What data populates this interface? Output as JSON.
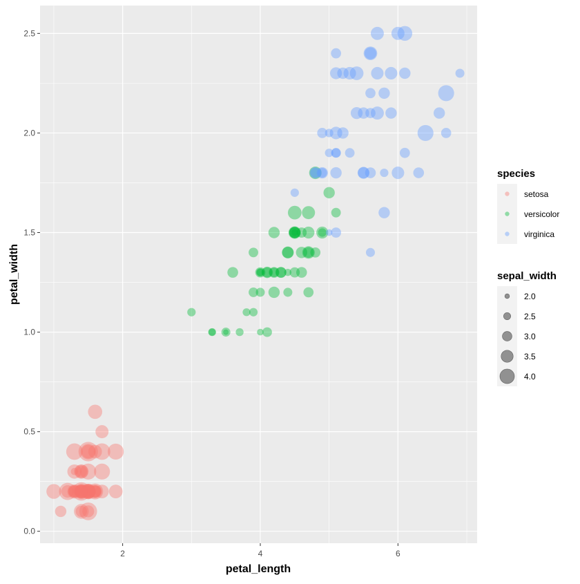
{
  "chart_data": {
    "type": "scatter",
    "xlabel": "petal_length",
    "ylabel": "petal_width",
    "xlim": [
      0.8,
      7.15
    ],
    "ylim": [
      -0.06,
      2.64
    ],
    "x_ticks": [
      2,
      4,
      6
    ],
    "x_tick_labels": [
      "2",
      "4",
      "6"
    ],
    "y_ticks": [
      0.0,
      0.5,
      1.0,
      1.5,
      2.0,
      2.5
    ],
    "y_tick_labels": [
      "0.0",
      "0.5",
      "1.0",
      "1.5",
      "2.0",
      "2.5"
    ],
    "grid": true,
    "size_variable": "sepal_width",
    "point_alpha": 0.4,
    "legend_placement": "right",
    "legend": {
      "color_title": "species",
      "size_title": "sepal_width",
      "size_breaks": [
        "2.0",
        "2.5",
        "3.0",
        "3.5",
        "4.0"
      ]
    },
    "series": [
      {
        "name": "setosa",
        "color": "#F8766D",
        "points": [
          [
            1.4,
            0.2,
            3.5
          ],
          [
            1.4,
            0.2,
            3.0
          ],
          [
            1.3,
            0.2,
            3.2
          ],
          [
            1.5,
            0.2,
            3.1
          ],
          [
            1.4,
            0.2,
            3.6
          ],
          [
            1.7,
            0.4,
            3.9
          ],
          [
            1.4,
            0.3,
            3.4
          ],
          [
            1.5,
            0.2,
            3.4
          ],
          [
            1.4,
            0.2,
            2.9
          ],
          [
            1.5,
            0.1,
            3.1
          ],
          [
            1.5,
            0.2,
            3.7
          ],
          [
            1.6,
            0.2,
            3.4
          ],
          [
            1.4,
            0.1,
            3.0
          ],
          [
            1.1,
            0.1,
            3.0
          ],
          [
            1.2,
            0.2,
            4.0
          ],
          [
            1.5,
            0.4,
            4.4
          ],
          [
            1.3,
            0.4,
            3.9
          ],
          [
            1.4,
            0.3,
            3.5
          ],
          [
            1.7,
            0.3,
            3.8
          ],
          [
            1.5,
            0.3,
            3.8
          ],
          [
            1.7,
            0.2,
            3.4
          ],
          [
            1.5,
            0.4,
            3.7
          ],
          [
            1.0,
            0.2,
            3.6
          ],
          [
            1.7,
            0.5,
            3.3
          ],
          [
            1.9,
            0.2,
            3.4
          ],
          [
            1.6,
            0.2,
            3.0
          ],
          [
            1.6,
            0.4,
            3.4
          ],
          [
            1.5,
            0.2,
            3.5
          ],
          [
            1.4,
            0.2,
            3.4
          ],
          [
            1.6,
            0.2,
            3.2
          ],
          [
            1.6,
            0.2,
            3.1
          ],
          [
            1.5,
            0.4,
            3.4
          ],
          [
            1.5,
            0.1,
            4.1
          ],
          [
            1.4,
            0.2,
            4.2
          ],
          [
            1.5,
            0.2,
            3.1
          ],
          [
            1.2,
            0.2,
            3.2
          ],
          [
            1.3,
            0.2,
            3.5
          ],
          [
            1.4,
            0.1,
            3.6
          ],
          [
            1.3,
            0.2,
            3.0
          ],
          [
            1.5,
            0.2,
            3.4
          ],
          [
            1.3,
            0.3,
            3.5
          ],
          [
            1.3,
            0.3,
            2.3
          ],
          [
            1.3,
            0.2,
            3.2
          ],
          [
            1.6,
            0.6,
            3.5
          ],
          [
            1.9,
            0.4,
            3.8
          ],
          [
            1.4,
            0.3,
            3.0
          ],
          [
            1.6,
            0.2,
            3.8
          ],
          [
            1.4,
            0.2,
            3.2
          ],
          [
            1.5,
            0.2,
            3.7
          ],
          [
            1.4,
            0.2,
            3.3
          ]
        ]
      },
      {
        "name": "versicolor",
        "color": "#00BA38",
        "points": [
          [
            4.7,
            1.4,
            3.2
          ],
          [
            4.5,
            1.5,
            3.2
          ],
          [
            4.9,
            1.5,
            3.1
          ],
          [
            4.0,
            1.3,
            2.3
          ],
          [
            4.6,
            1.5,
            2.8
          ],
          [
            4.5,
            1.3,
            2.8
          ],
          [
            4.7,
            1.6,
            3.3
          ],
          [
            3.3,
            1.0,
            2.4
          ],
          [
            4.6,
            1.3,
            2.9
          ],
          [
            3.9,
            1.4,
            2.7
          ],
          [
            3.5,
            1.0,
            2.0
          ],
          [
            4.2,
            1.5,
            3.0
          ],
          [
            4.0,
            1.0,
            2.2
          ],
          [
            4.7,
            1.4,
            2.9
          ],
          [
            3.6,
            1.3,
            2.9
          ],
          [
            4.4,
            1.4,
            3.1
          ],
          [
            4.5,
            1.5,
            3.0
          ],
          [
            4.1,
            1.0,
            2.7
          ],
          [
            4.5,
            1.5,
            2.2
          ],
          [
            3.9,
            1.1,
            2.5
          ],
          [
            4.8,
            1.8,
            3.2
          ],
          [
            4.0,
            1.3,
            2.8
          ],
          [
            4.9,
            1.5,
            2.5
          ],
          [
            4.7,
            1.2,
            2.8
          ],
          [
            4.3,
            1.3,
            2.9
          ],
          [
            4.4,
            1.4,
            3.0
          ],
          [
            4.8,
            1.4,
            2.8
          ],
          [
            5.0,
            1.7,
            3.0
          ],
          [
            4.5,
            1.5,
            2.9
          ],
          [
            3.5,
            1.0,
            2.6
          ],
          [
            3.8,
            1.1,
            2.4
          ],
          [
            3.7,
            1.0,
            2.4
          ],
          [
            3.9,
            1.2,
            2.7
          ],
          [
            5.1,
            1.6,
            2.7
          ],
          [
            4.5,
            1.5,
            3.0
          ],
          [
            4.5,
            1.6,
            3.4
          ],
          [
            4.7,
            1.5,
            3.1
          ],
          [
            4.4,
            1.3,
            2.3
          ],
          [
            4.1,
            1.3,
            3.0
          ],
          [
            4.0,
            1.3,
            2.5
          ],
          [
            4.4,
            1.2,
            2.6
          ],
          [
            4.6,
            1.4,
            3.0
          ],
          [
            4.0,
            1.2,
            2.6
          ],
          [
            3.3,
            1.0,
            2.3
          ],
          [
            4.2,
            1.3,
            2.7
          ],
          [
            4.2,
            1.2,
            3.0
          ],
          [
            4.2,
            1.3,
            2.9
          ],
          [
            4.3,
            1.3,
            2.9
          ],
          [
            3.0,
            1.1,
            2.5
          ],
          [
            4.1,
            1.3,
            2.8
          ]
        ]
      },
      {
        "name": "virginica",
        "color": "#619CFF",
        "points": [
          [
            6.0,
            2.5,
            3.3
          ],
          [
            5.1,
            1.9,
            2.7
          ],
          [
            5.9,
            2.1,
            3.0
          ],
          [
            5.6,
            1.8,
            2.9
          ],
          [
            5.8,
            2.2,
            3.0
          ],
          [
            6.6,
            2.1,
            3.0
          ],
          [
            4.5,
            1.7,
            2.5
          ],
          [
            6.3,
            1.8,
            2.9
          ],
          [
            5.8,
            1.8,
            2.5
          ],
          [
            6.1,
            2.5,
            3.6
          ],
          [
            5.1,
            2.0,
            3.2
          ],
          [
            5.3,
            1.9,
            2.7
          ],
          [
            5.5,
            2.1,
            3.0
          ],
          [
            5.0,
            2.0,
            2.5
          ],
          [
            5.1,
            2.4,
            2.8
          ],
          [
            5.3,
            2.3,
            3.2
          ],
          [
            5.5,
            1.8,
            3.0
          ],
          [
            6.7,
            2.2,
            3.8
          ],
          [
            6.9,
            2.3,
            2.6
          ],
          [
            5.0,
            1.5,
            2.2
          ],
          [
            5.7,
            2.3,
            3.2
          ],
          [
            4.9,
            2.0,
            2.8
          ],
          [
            6.7,
            2.0,
            2.8
          ],
          [
            4.9,
            1.8,
            2.7
          ],
          [
            5.7,
            2.1,
            3.3
          ],
          [
            6.0,
            1.8,
            3.2
          ],
          [
            4.8,
            1.8,
            2.8
          ],
          [
            4.9,
            1.8,
            3.0
          ],
          [
            5.6,
            2.1,
            2.8
          ],
          [
            5.8,
            1.6,
            3.0
          ],
          [
            6.1,
            1.9,
            2.8
          ],
          [
            6.4,
            2.0,
            3.8
          ],
          [
            5.6,
            2.2,
            2.8
          ],
          [
            5.1,
            1.5,
            2.8
          ],
          [
            5.6,
            1.4,
            2.6
          ],
          [
            6.1,
            2.3,
            3.0
          ],
          [
            5.6,
            2.4,
            3.4
          ],
          [
            5.5,
            1.8,
            3.1
          ],
          [
            4.8,
            1.8,
            3.0
          ],
          [
            5.4,
            2.1,
            3.1
          ],
          [
            5.6,
            2.4,
            3.1
          ],
          [
            5.1,
            2.3,
            3.1
          ],
          [
            5.1,
            1.9,
            2.7
          ],
          [
            5.9,
            2.3,
            3.2
          ],
          [
            5.7,
            2.5,
            3.3
          ],
          [
            5.2,
            2.3,
            3.0
          ],
          [
            5.0,
            1.9,
            2.5
          ],
          [
            5.2,
            2.0,
            3.0
          ],
          [
            5.4,
            2.3,
            3.4
          ],
          [
            5.1,
            1.8,
            3.0
          ]
        ]
      }
    ]
  }
}
